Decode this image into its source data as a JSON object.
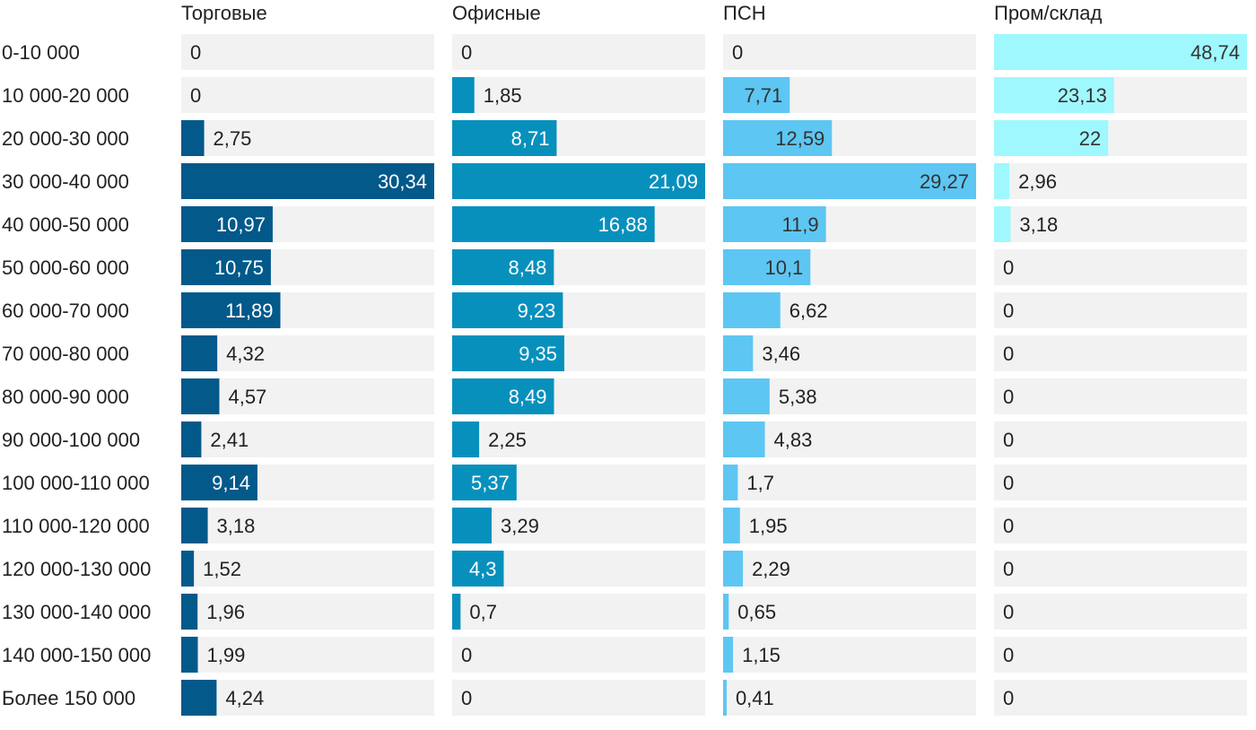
{
  "chart_data": {
    "type": "bar",
    "orientation": "horizontal",
    "layout": "small-multiples",
    "grid": false,
    "legend": "none",
    "categories": [
      "0-10 000",
      "10 000-20 000",
      "20 000-30 000",
      "30 000-40 000",
      "40 000-50 000",
      "50 000-60 000",
      "60 000-70 000",
      "70 000-80 000",
      "80 000-90 000",
      "90 000-100 000",
      "100 000-110 000",
      "110 000-120 000",
      "120 000-130 000",
      "130 000-140 000",
      "140 000-150 000",
      "Более 150 000"
    ],
    "series": [
      {
        "name": "Торговые",
        "color": "#02598a",
        "label_color_inside": "#ffffff",
        "labels": [
          "0",
          "0",
          "2,75",
          "30,34",
          "10,97",
          "10,75",
          "11,89",
          "4,32",
          "4,57",
          "2,41",
          "9,14",
          "3,18",
          "1,52",
          "1,96",
          "1,99",
          "4,24"
        ],
        "values": [
          0,
          0,
          2.75,
          30.34,
          10.97,
          10.75,
          11.89,
          4.32,
          4.57,
          2.41,
          9.14,
          3.18,
          1.52,
          1.96,
          1.99,
          4.24
        ],
        "xlim": [
          0,
          30.34
        ]
      },
      {
        "name": "Офисные",
        "color": "#0890bd",
        "label_color_inside": "#ffffff",
        "labels": [
          "0",
          "1,85",
          "8,71",
          "21,09",
          "16,88",
          "8,48",
          "9,23",
          "9,35",
          "8,49",
          "2,25",
          "5,37",
          "3,29",
          "4,3",
          "0,7",
          "0",
          "0"
        ],
        "values": [
          0,
          1.85,
          8.71,
          21.09,
          16.88,
          8.48,
          9.23,
          9.35,
          8.49,
          2.25,
          5.37,
          3.29,
          4.3,
          0.7,
          0,
          0
        ],
        "xlim": [
          0,
          21.09
        ]
      },
      {
        "name": "ПСН",
        "color": "#5ec6f2",
        "label_color_inside": "#333333",
        "labels": [
          "0",
          "7,71",
          "12,59",
          "29,27",
          "11,9",
          "10,1",
          "6,62",
          "3,46",
          "5,38",
          "4,83",
          "1,7",
          "1,95",
          "2,29",
          "0,65",
          "1,15",
          "0,41"
        ],
        "values": [
          0,
          7.71,
          12.59,
          29.27,
          11.9,
          10.1,
          6.62,
          3.46,
          5.38,
          4.83,
          1.7,
          1.95,
          2.29,
          0.65,
          1.15,
          0.41
        ],
        "xlim": [
          0,
          29.27
        ]
      },
      {
        "name": "Пром/склад",
        "color": "#9ff8fd",
        "label_color_inside": "#333333",
        "labels": [
          "48,74",
          "23,13",
          "22",
          "2,96",
          "3,18",
          "0",
          "0",
          "0",
          "0",
          "0",
          "0",
          "0",
          "0",
          "0",
          "0",
          "0"
        ],
        "values": [
          48.74,
          23.13,
          22,
          2.96,
          3.18,
          0,
          0,
          0,
          0,
          0,
          0,
          0,
          0,
          0,
          0,
          0
        ],
        "xlim": [
          0,
          48.74
        ]
      }
    ],
    "track_color": "#f2f2f2",
    "text_color": "#222222"
  }
}
